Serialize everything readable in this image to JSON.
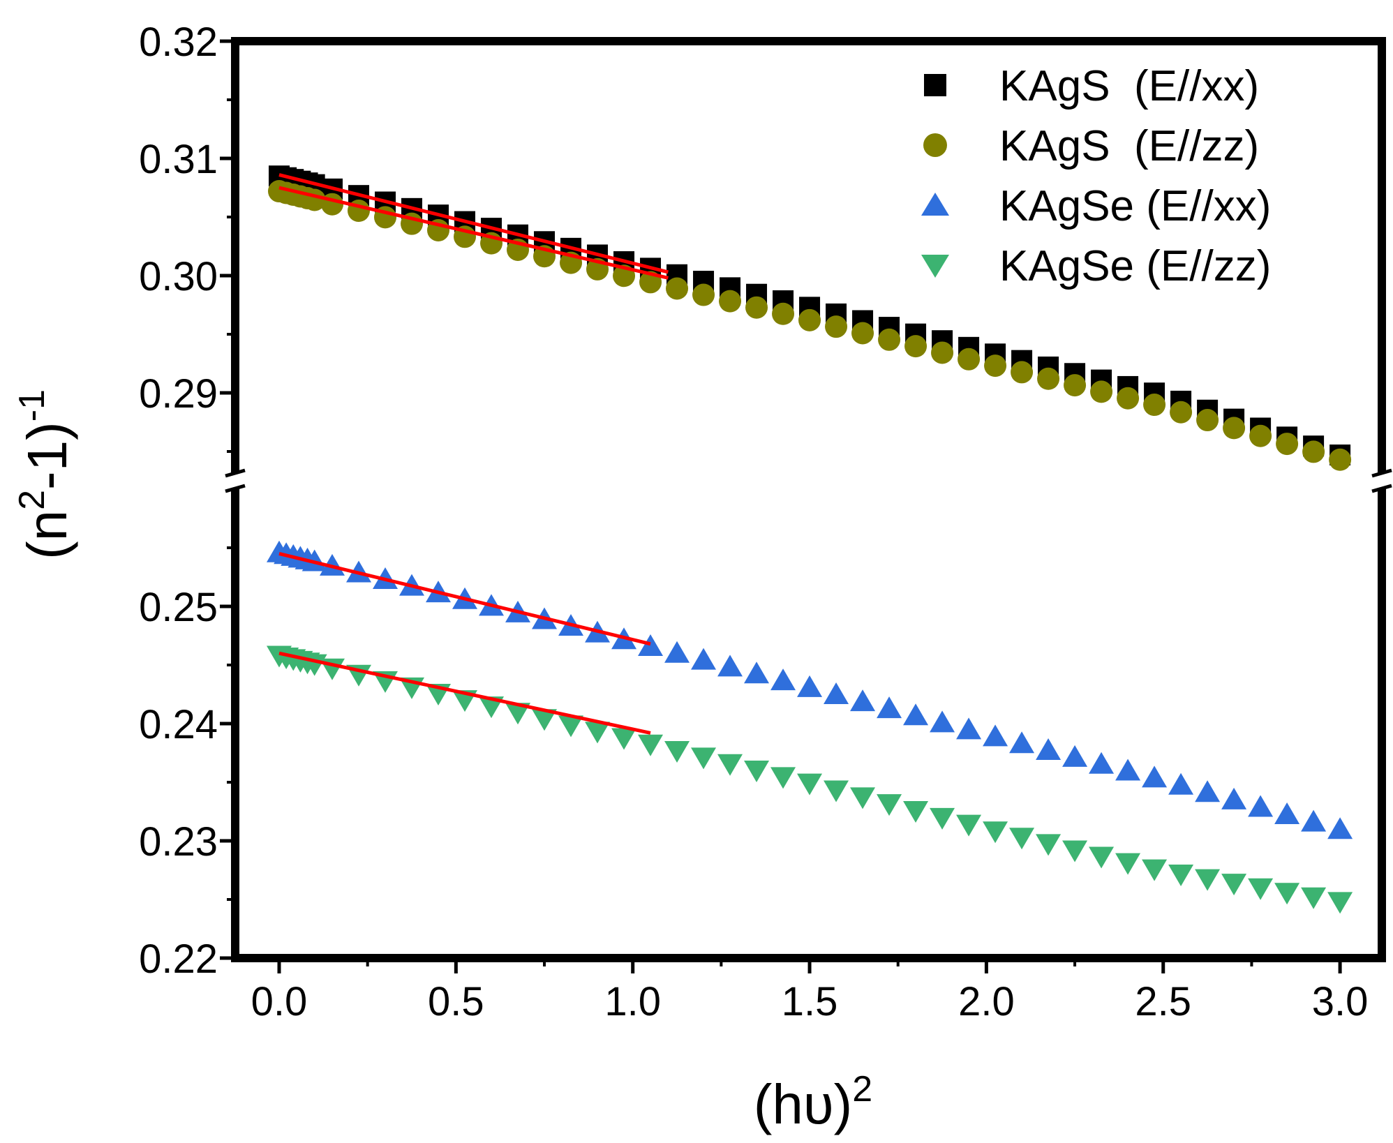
{
  "chart_data": {
    "type": "scatter",
    "title": "",
    "xlabel": "(hυ)",
    "xlabel_superscript": "2",
    "ylabel_parts": [
      "(n",
      "2",
      "-1)",
      "-1"
    ],
    "xlim": [
      -0.1,
      3.07
    ],
    "xticks": [
      0.0,
      0.5,
      1.0,
      1.5,
      2.0,
      2.5,
      3.0
    ],
    "xtick_labels": [
      "0.0",
      "0.5",
      "1.0",
      "1.5",
      "2.0",
      "2.5",
      "3.0"
    ],
    "y_axis_break": {
      "lower_segment": [
        0.22,
        0.26
      ],
      "upper_segment": [
        0.284,
        0.32
      ]
    },
    "yticks_upper": [
      0.29,
      0.3,
      0.31,
      0.32
    ],
    "ytick_labels_upper": [
      "0.29",
      "0.30",
      "0.31",
      "0.32"
    ],
    "yticks_lower": [
      0.22,
      0.23,
      0.24,
      0.25
    ],
    "ytick_labels_lower": [
      "0.22",
      "0.23",
      "0.24",
      "0.25"
    ],
    "grid": false,
    "legend_position": "top-right",
    "series": [
      {
        "name": "KAgS  (E//xx)",
        "marker": "square",
        "color": "#000000",
        "x_range": [
          0.0,
          3.0
        ],
        "y_at_x": [
          [
            0.0,
            0.3085
          ],
          [
            0.5,
            0.3048
          ],
          [
            1.0,
            0.301
          ],
          [
            1.5,
            0.2973
          ],
          [
            2.0,
            0.2935
          ],
          [
            2.5,
            0.2898
          ],
          [
            3.0,
            0.2847
          ]
        ]
      },
      {
        "name": "KAgS  (E//zz)",
        "marker": "circle",
        "color": "#808000",
        "x_range": [
          0.0,
          3.0
        ],
        "y_at_x": [
          [
            0.0,
            0.3072
          ],
          [
            0.5,
            0.3035
          ],
          [
            1.0,
            0.2998
          ],
          [
            1.5,
            0.2962
          ],
          [
            2.0,
            0.2925
          ],
          [
            2.5,
            0.2888
          ],
          [
            3.0,
            0.2843
          ]
        ]
      },
      {
        "name": "KAgSe (E//xx)",
        "marker": "triangle-up",
        "color": "#2f6fdc",
        "x_range": [
          0.0,
          3.0
        ],
        "y_at_x": [
          [
            0.0,
            0.2546
          ],
          [
            0.5,
            0.2508
          ],
          [
            1.0,
            0.247
          ],
          [
            1.5,
            0.2431
          ],
          [
            2.0,
            0.2391
          ],
          [
            2.5,
            0.2352
          ],
          [
            3.0,
            0.231
          ]
        ]
      },
      {
        "name": "KAgSe (E//zz)",
        "marker": "triangle-down",
        "color": "#3cb371",
        "x_range": [
          0.0,
          3.0
        ],
        "y_at_x": [
          [
            0.0,
            0.2458
          ],
          [
            0.5,
            0.2422
          ],
          [
            1.0,
            0.2386
          ],
          [
            1.5,
            0.2349
          ],
          [
            2.0,
            0.231
          ],
          [
            2.5,
            0.2274
          ],
          [
            3.0,
            0.2248
          ]
        ]
      }
    ],
    "fit_lines": [
      {
        "series": "KAgS  (E//xx)",
        "color": "#ff0000",
        "x": [
          0.0,
          1.1
        ],
        "y": [
          0.3086,
          0.3003
        ]
      },
      {
        "series": "KAgS  (E//zz)",
        "color": "#ff0000",
        "x": [
          0.0,
          1.1
        ],
        "y": [
          0.3075,
          0.2998
        ]
      },
      {
        "series": "KAgSe (E//xx)",
        "color": "#ff0000",
        "x": [
          0.0,
          1.05
        ],
        "y": [
          0.2545,
          0.2468
        ]
      },
      {
        "series": "KAgSe (E//zz)",
        "color": "#ff0000",
        "x": [
          0.0,
          1.05
        ],
        "y": [
          0.246,
          0.2392
        ]
      }
    ]
  }
}
